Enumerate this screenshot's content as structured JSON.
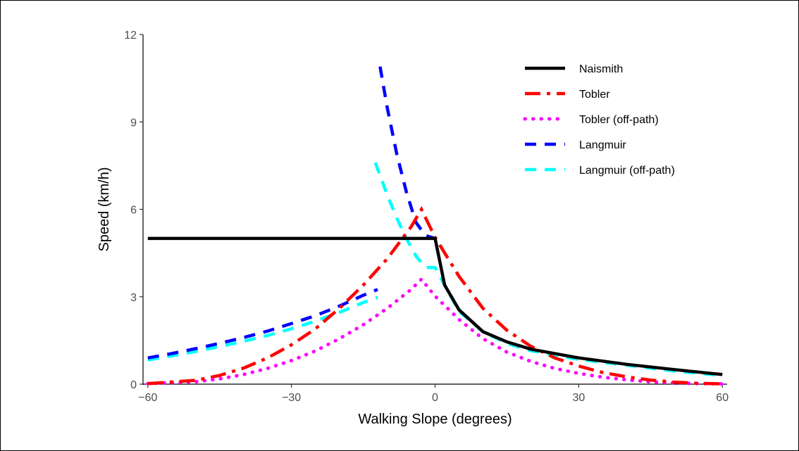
{
  "chart_data": {
    "type": "line",
    "xlabel": "Walking Slope (degrees)",
    "ylabel": "Speed (km/h)",
    "xlim": [
      -61,
      61
    ],
    "ylim": [
      0,
      12
    ],
    "x_ticks": [
      -60,
      -30,
      0,
      30,
      60
    ],
    "x_tick_labels": [
      "−60",
      "−30",
      "0",
      "30",
      "60"
    ],
    "y_ticks": [
      0,
      3,
      6,
      9,
      12
    ],
    "y_tick_labels": [
      "0",
      "3",
      "6",
      "9",
      "12"
    ],
    "grid": false,
    "legend_position": "top-right",
    "series": [
      {
        "name": "Naismith",
        "color": "#000000",
        "dash": "solid",
        "points": [
          [
            -60,
            5.0
          ],
          [
            0,
            5.0
          ],
          [
            2,
            3.4
          ],
          [
            5,
            2.55
          ],
          [
            10,
            1.8
          ],
          [
            15,
            1.45
          ],
          [
            20,
            1.2
          ],
          [
            30,
            0.9
          ],
          [
            40,
            0.68
          ],
          [
            50,
            0.5
          ],
          [
            60,
            0.33
          ]
        ]
      },
      {
        "name": "Tobler",
        "color": "#ff0000",
        "dash": "longdash-dot",
        "points": [
          [
            -60,
            0.02
          ],
          [
            -50,
            0.13
          ],
          [
            -45,
            0.3
          ],
          [
            -40,
            0.55
          ],
          [
            -35,
            0.9
          ],
          [
            -30,
            1.35
          ],
          [
            -25,
            1.9
          ],
          [
            -20,
            2.6
          ],
          [
            -15,
            3.4
          ],
          [
            -10,
            4.3
          ],
          [
            -5,
            5.4
          ],
          [
            -2.86,
            6.0
          ],
          [
            0,
            5.04
          ],
          [
            5,
            3.7
          ],
          [
            10,
            2.6
          ],
          [
            15,
            1.85
          ],
          [
            20,
            1.3
          ],
          [
            25,
            0.9
          ],
          [
            30,
            0.62
          ],
          [
            35,
            0.4
          ],
          [
            40,
            0.25
          ],
          [
            45,
            0.14
          ],
          [
            50,
            0.07
          ],
          [
            55,
            0.03
          ],
          [
            60,
            0.01
          ]
        ]
      },
      {
        "name": "Tobler (off-path)",
        "color": "#ff00ff",
        "dash": "dotted",
        "points": [
          [
            -60,
            0.02
          ],
          [
            -50,
            0.08
          ],
          [
            -45,
            0.18
          ],
          [
            -40,
            0.33
          ],
          [
            -35,
            0.54
          ],
          [
            -30,
            0.81
          ],
          [
            -25,
            1.14
          ],
          [
            -20,
            1.56
          ],
          [
            -15,
            2.04
          ],
          [
            -10,
            2.6
          ],
          [
            -5,
            3.25
          ],
          [
            -2.86,
            3.6
          ],
          [
            0,
            3.02
          ],
          [
            5,
            2.22
          ],
          [
            10,
            1.56
          ],
          [
            15,
            1.1
          ],
          [
            20,
            0.78
          ],
          [
            25,
            0.54
          ],
          [
            30,
            0.37
          ],
          [
            35,
            0.24
          ],
          [
            40,
            0.15
          ],
          [
            45,
            0.08
          ],
          [
            50,
            0.04
          ],
          [
            55,
            0.02
          ],
          [
            60,
            0.01
          ]
        ]
      },
      {
        "name": "Langmuir",
        "color": "#0000ff",
        "dash": "dashed",
        "segments": [
          [
            [
              -60,
              0.9
            ],
            [
              -55,
              1.05
            ],
            [
              -50,
              1.22
            ],
            [
              -45,
              1.4
            ],
            [
              -40,
              1.6
            ],
            [
              -35,
              1.82
            ],
            [
              -30,
              2.08
            ],
            [
              -25,
              2.35
            ],
            [
              -20,
              2.68
            ],
            [
              -15,
              3.05
            ],
            [
              -12,
              3.25
            ]
          ],
          [
            [
              -11.5,
              10.9
            ],
            [
              -10,
              9.5
            ],
            [
              -8,
              7.9
            ],
            [
              -6,
              6.6
            ],
            [
              -4,
              5.55
            ],
            [
              -2,
              5.1
            ],
            [
              0,
              5.0
            ]
          ]
        ]
      },
      {
        "name": "Langmuir (off-path)",
        "color": "#00ffff",
        "dash": "dashed",
        "segments": [
          [
            [
              -60,
              0.83
            ],
            [
              -55,
              0.97
            ],
            [
              -50,
              1.12
            ],
            [
              -45,
              1.29
            ],
            [
              -40,
              1.47
            ],
            [
              -35,
              1.67
            ],
            [
              -30,
              1.9
            ],
            [
              -25,
              2.16
            ],
            [
              -20,
              2.46
            ],
            [
              -15,
              2.8
            ],
            [
              -12,
              2.98
            ]
          ],
          [
            [
              -12.5,
              7.6
            ],
            [
              -10,
              6.5
            ],
            [
              -8,
              5.7
            ],
            [
              -6,
              5.0
            ],
            [
              -4,
              4.4
            ],
            [
              -2,
              4.0
            ],
            [
              0,
              4.0
            ],
            [
              5,
              2.5
            ],
            [
              10,
              1.8
            ],
            [
              15,
              1.4
            ],
            [
              20,
              1.15
            ],
            [
              30,
              0.85
            ],
            [
              40,
              0.65
            ],
            [
              50,
              0.45
            ],
            [
              60,
              0.3
            ]
          ]
        ]
      }
    ]
  }
}
